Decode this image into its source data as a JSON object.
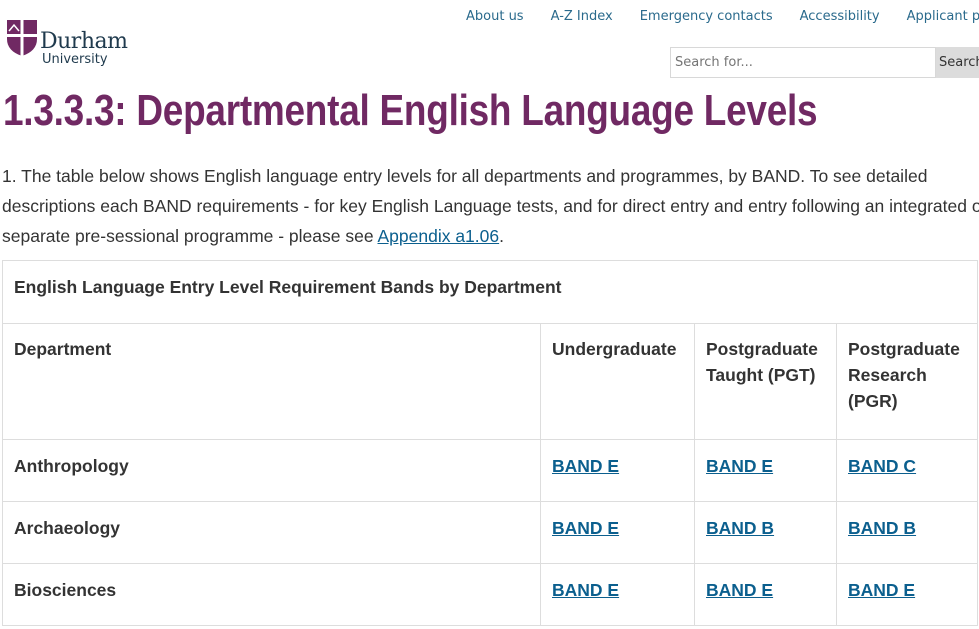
{
  "header": {
    "logo": {
      "name": "Durham",
      "sub": "University",
      "color": "#702963"
    },
    "nav": [
      "About us",
      "A-Z Index",
      "Emergency contacts",
      "Accessibility",
      "Applicant portal"
    ],
    "search": {
      "placeholder": "Search for...",
      "button": "Search"
    }
  },
  "page": {
    "title": "1.3.3.3: Departmental English Language Levels",
    "intro_text": "1. The table below shows English language entry levels for all departments and programmes, by BAND. To see detailed descriptions each BAND requirements - for key English Language tests, and for direct entry and entry following an integrated or separate pre-sessional programme - please see ",
    "intro_link": "Appendix a1.06",
    "intro_end": "."
  },
  "table": {
    "caption": "English Language Entry Level Requirement Bands by Department",
    "headers": [
      "Department",
      "Undergraduate",
      "Postgraduate Taught (PGT)",
      "Postgraduate Research (PGR)"
    ],
    "rows": [
      {
        "dept": "Anthropology",
        "ug": "BAND E",
        "pgt": "BAND E",
        "pgr": "BAND C"
      },
      {
        "dept": "Archaeology",
        "ug": "BAND E",
        "pgt": "BAND B",
        "pgr": "BAND B"
      },
      {
        "dept": "Biosciences",
        "ug": "BAND E",
        "pgt": "BAND E",
        "pgr": "BAND E"
      }
    ]
  }
}
